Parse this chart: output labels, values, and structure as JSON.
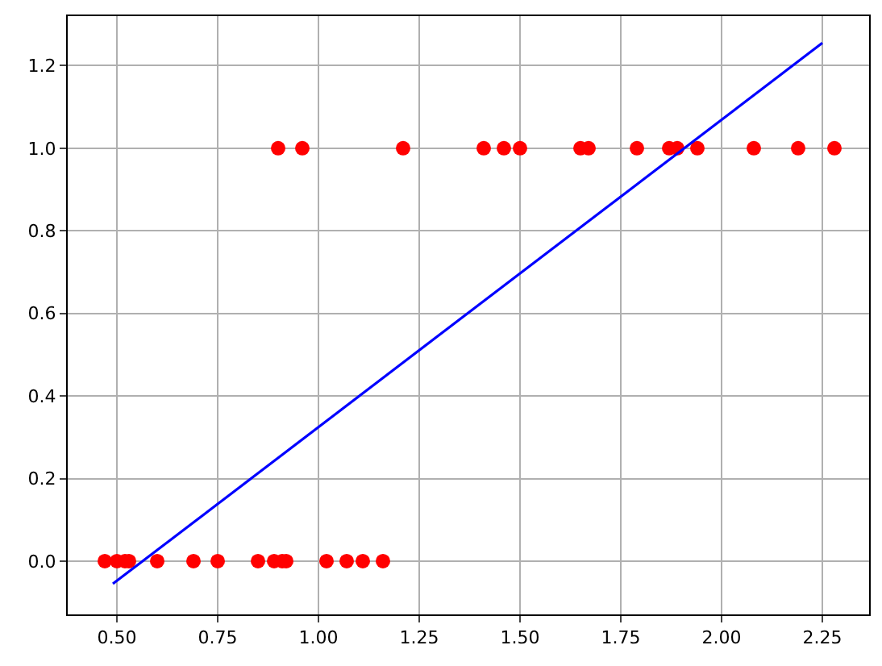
{
  "chart_data": {
    "type": "scatter",
    "xlim": [
      0.378,
      2.366
    ],
    "ylim": [
      -0.129,
      1.32
    ],
    "xticks": [
      {
        "value": 0.5,
        "label": "0.50"
      },
      {
        "value": 0.75,
        "label": "0.75"
      },
      {
        "value": 1.0,
        "label": "1.00"
      },
      {
        "value": 1.25,
        "label": "1.25"
      },
      {
        "value": 1.5,
        "label": "1.50"
      },
      {
        "value": 1.75,
        "label": "1.75"
      },
      {
        "value": 2.0,
        "label": "2.00"
      },
      {
        "value": 2.25,
        "label": "2.25"
      }
    ],
    "yticks": [
      {
        "value": 0,
        "label": "0.0"
      },
      {
        "value": 0.2,
        "label": "0.2"
      },
      {
        "value": 0.4,
        "label": "0.4"
      },
      {
        "value": 0.6,
        "label": "0.6"
      },
      {
        "value": 0.8,
        "label": "0.8"
      },
      {
        "value": 1.0,
        "label": "1.0"
      },
      {
        "value": 1.2,
        "label": "1.2"
      }
    ],
    "grid": true,
    "series": [
      {
        "color": "#ff0000",
        "marker": "circle",
        "x": [
          0.47,
          0.5,
          0.52,
          0.53,
          0.6,
          0.69,
          0.75,
          0.85,
          0.89,
          0.91,
          0.92,
          1.02,
          1.07,
          1.11,
          1.16,
          0.9,
          0.96,
          1.21,
          1.41,
          1.46,
          1.5,
          1.65,
          1.67,
          1.79,
          1.87,
          1.89,
          1.94,
          2.08,
          2.19,
          2.28
        ],
        "values": [
          0,
          0,
          0,
          0,
          0,
          0,
          0,
          0,
          0,
          0,
          0,
          0,
          0,
          0,
          0,
          1,
          1,
          1,
          1,
          1,
          1,
          1,
          1,
          1,
          1,
          1,
          1,
          1,
          1,
          1
        ]
      },
      {
        "type": "line",
        "color": "#0000ff",
        "line_style": "solid",
        "marker": "none",
        "x": [
          0.49,
          2.25
        ],
        "values": [
          -0.055,
          1.255
        ]
      }
    ]
  }
}
